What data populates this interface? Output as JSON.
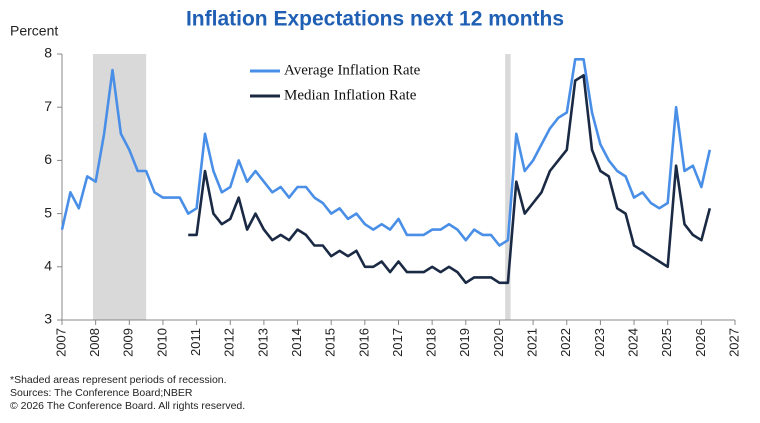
{
  "chart_data": {
    "type": "line",
    "title": "Inflation Expectations next 12 months",
    "y_label": "Percent",
    "footnotes": [
      "*Shaded areas represent periods of recession.",
      "Sources: The Conference Board;NBER",
      "© 2026 The Conference Board. All rights reserved."
    ],
    "x": [
      2007.0,
      2007.25,
      2007.5,
      2007.75,
      2008.0,
      2008.25,
      2008.5,
      2008.75,
      2009.0,
      2009.25,
      2009.5,
      2009.75,
      2010.0,
      2010.25,
      2010.5,
      2010.75,
      2011.0,
      2011.25,
      2011.5,
      2011.75,
      2012.0,
      2012.25,
      2012.5,
      2012.75,
      2013.0,
      2013.25,
      2013.5,
      2013.75,
      2014.0,
      2014.25,
      2014.5,
      2014.75,
      2015.0,
      2015.25,
      2015.5,
      2015.75,
      2016.0,
      2016.25,
      2016.5,
      2016.75,
      2017.0,
      2017.25,
      2017.5,
      2017.75,
      2018.0,
      2018.25,
      2018.5,
      2018.75,
      2019.0,
      2019.25,
      2019.5,
      2019.75,
      2020.0,
      2020.25,
      2020.5,
      2020.75,
      2021.0,
      2021.25,
      2021.5,
      2021.75,
      2022.0,
      2022.25,
      2022.5,
      2022.75,
      2023.0,
      2023.25,
      2023.5,
      2023.75,
      2024.0,
      2024.25,
      2024.5,
      2024.75,
      2025.0,
      2025.25,
      2025.5,
      2025.75,
      2026.0,
      2026.25
    ],
    "series": [
      {
        "name": "Average Inflation Rate",
        "color": "#4a8fe7",
        "values": [
          4.7,
          5.4,
          5.1,
          5.7,
          5.6,
          6.5,
          7.7,
          6.5,
          6.2,
          5.8,
          5.8,
          5.4,
          5.3,
          5.3,
          5.3,
          5.0,
          5.1,
          6.5,
          5.8,
          5.4,
          5.5,
          6.0,
          5.6,
          5.8,
          5.6,
          5.4,
          5.5,
          5.3,
          5.5,
          5.5,
          5.3,
          5.2,
          5.0,
          5.1,
          4.9,
          5.0,
          4.8,
          4.7,
          4.8,
          4.7,
          4.9,
          4.6,
          4.6,
          4.6,
          4.7,
          4.7,
          4.8,
          4.7,
          4.5,
          4.7,
          4.6,
          4.6,
          4.4,
          4.5,
          6.5,
          5.8,
          6.0,
          6.3,
          6.6,
          6.8,
          6.9,
          7.9,
          7.9,
          6.9,
          6.3,
          6.0,
          5.8,
          5.7,
          5.3,
          5.4,
          5.2,
          5.1,
          5.2,
          7.0,
          5.8,
          5.9,
          5.5,
          6.2
        ]
      },
      {
        "name": "Median Inflation Rate",
        "color": "#1b2a44",
        "values": [
          null,
          null,
          null,
          null,
          null,
          null,
          null,
          null,
          null,
          null,
          null,
          null,
          null,
          null,
          null,
          4.6,
          4.6,
          5.8,
          5.0,
          4.8,
          4.9,
          5.3,
          4.7,
          5.0,
          4.7,
          4.5,
          4.6,
          4.5,
          4.7,
          4.6,
          4.4,
          4.4,
          4.2,
          4.3,
          4.2,
          4.3,
          4.0,
          4.0,
          4.1,
          3.9,
          4.1,
          3.9,
          3.9,
          3.9,
          4.0,
          3.9,
          4.0,
          3.9,
          3.7,
          3.8,
          3.8,
          3.8,
          3.7,
          3.7,
          5.6,
          5.0,
          5.2,
          5.4,
          5.8,
          6.0,
          6.2,
          7.5,
          7.6,
          6.2,
          5.8,
          5.7,
          5.1,
          5.0,
          4.4,
          4.3,
          4.2,
          4.1,
          4.0,
          5.9,
          4.8,
          4.6,
          4.5,
          5.1
        ]
      }
    ],
    "recessions": [
      [
        2007.92,
        2009.5
      ],
      [
        2020.17,
        2020.33
      ]
    ],
    "xlim": [
      2007,
      2027
    ],
    "xticks": [
      2007,
      2008,
      2009,
      2010,
      2011,
      2012,
      2013,
      2014,
      2015,
      2016,
      2017,
      2018,
      2019,
      2020,
      2021,
      2022,
      2023,
      2024,
      2025,
      2026,
      2027
    ],
    "ylim": [
      3,
      8
    ],
    "yticks": [
      3,
      4,
      5,
      6,
      7,
      8
    ],
    "legend": "upper left"
  }
}
